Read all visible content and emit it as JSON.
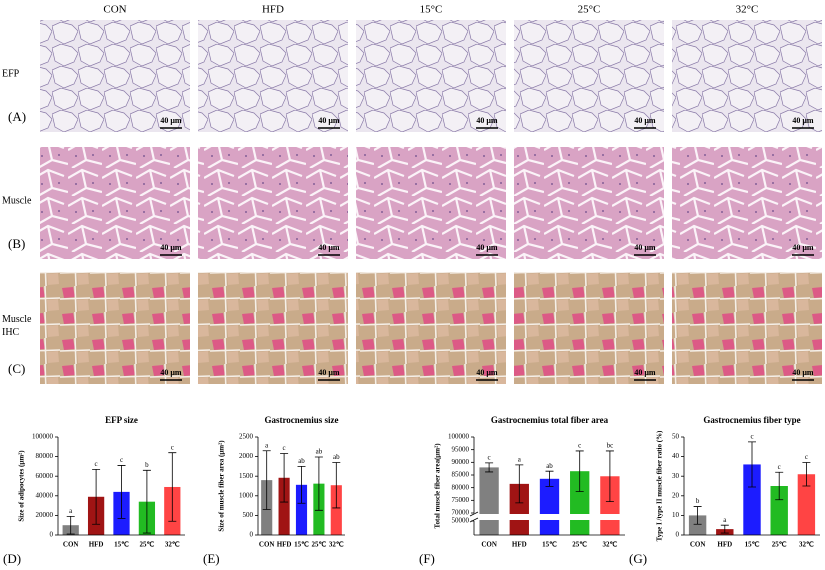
{
  "figure": {
    "columns": [
      "CON",
      "HFD",
      "15°C",
      "25°C",
      "32°C"
    ],
    "rows": [
      {
        "label": [
          "EFP"
        ],
        "panel": "(A)"
      },
      {
        "label": [
          "Muscle"
        ],
        "panel": "(B)"
      },
      {
        "label": [
          "Muscle",
          "IHC"
        ],
        "panel": "(C)"
      }
    ],
    "scale_bar": "40 μm"
  },
  "chart_data": [
    {
      "type": "bar",
      "panel": "(D)",
      "title": "EFP size",
      "y_label": "Size of adipocytes (μm²)",
      "categories": [
        "CON",
        "HFD",
        "15℃",
        "25℃",
        "32℃"
      ],
      "values": [
        10000,
        39000,
        44000,
        34000,
        49000
      ],
      "errors": [
        9000,
        28000,
        27000,
        32000,
        35000
      ],
      "letters": [
        "a",
        "c",
        "c",
        "b",
        "c"
      ],
      "colors": [
        "#808080",
        "#a01414",
        "#1c1cff",
        "#22bb22",
        "#ff4444"
      ],
      "ylim": [
        0,
        100000
      ],
      "yticks": [
        0,
        20000,
        40000,
        60000,
        80000,
        100000
      ]
    },
    {
      "type": "bar",
      "panel": "(E)",
      "title": "Gastrocnemius size",
      "y_label": "Size of muscle fiber area (μm²)",
      "categories": [
        "CON",
        "HFD",
        "15℃",
        "25℃",
        "32℃"
      ],
      "values": [
        1400,
        1460,
        1280,
        1310,
        1270
      ],
      "errors": [
        750,
        620,
        470,
        680,
        580
      ],
      "letters": [
        "a",
        "c",
        "ab",
        "ab",
        "ab"
      ],
      "colors": [
        "#808080",
        "#a01414",
        "#1c1cff",
        "#22bb22",
        "#ff4444"
      ],
      "ylim": [
        0,
        2500
      ],
      "yticks": [
        0,
        500,
        1000,
        1500,
        2000,
        2500
      ]
    },
    {
      "type": "bar",
      "panel": "(F)",
      "title": "Gastrocnemius total fiber area",
      "y_label": "Total muscle fiber area(μm²)",
      "categories": [
        "CON",
        "HFD",
        "15℃",
        "25℃",
        "32℃"
      ],
      "values": [
        88000,
        81500,
        83500,
        86500,
        84500
      ],
      "errors": [
        1800,
        7500,
        3000,
        8000,
        10000
      ],
      "letters": [
        "c",
        "a",
        "ab",
        "c",
        "bc"
      ],
      "colors": [
        "#808080",
        "#a01414",
        "#1c1cff",
        "#22bb22",
        "#ff4444"
      ],
      "ylim": [
        70000,
        100000
      ],
      "yticks": [
        70000,
        75000,
        80000,
        85000,
        90000,
        95000,
        100000
      ],
      "broken_axis": {
        "ylim": [
          0,
          50000
        ],
        "yticks": [
          50000
        ]
      }
    },
    {
      "type": "bar",
      "panel": "(G)",
      "title": "Gastrocnemius fiber type",
      "y_label": "Type I /type II muscle fiber ratio (%)",
      "categories": [
        "CON",
        "HFD",
        "15℃",
        "25℃",
        "32℃"
      ],
      "values": [
        10,
        3,
        36,
        25,
        31
      ],
      "errors": [
        4.5,
        2,
        11.5,
        7,
        6
      ],
      "letters": [
        "b",
        "a",
        "c",
        "c",
        "c"
      ],
      "colors": [
        "#808080",
        "#a01414",
        "#1c1cff",
        "#22bb22",
        "#ff4444"
      ],
      "ylim": [
        0,
        50
      ],
      "yticks": [
        0,
        10,
        20,
        30,
        40,
        50
      ]
    }
  ]
}
